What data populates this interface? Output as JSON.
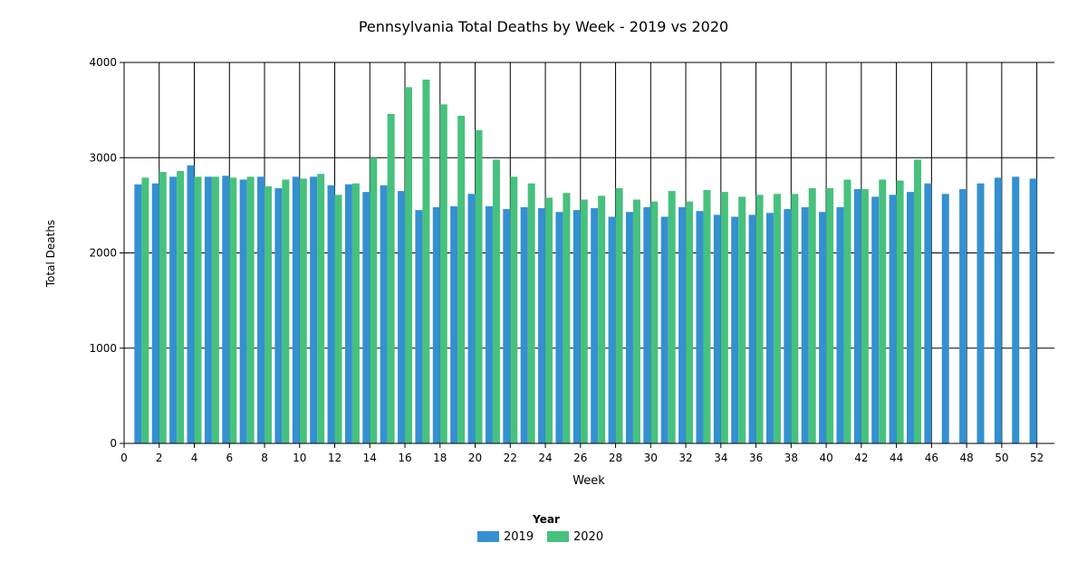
{
  "chart_data": {
    "type": "bar",
    "title": "Pennsylvania Total Deaths by Week - 2019 vs 2020",
    "xlabel": "Week",
    "ylabel": "Total Deaths",
    "xlim": [
      0,
      53
    ],
    "ylim": [
      0,
      4000
    ],
    "xticks": [
      0,
      2,
      4,
      6,
      8,
      10,
      12,
      14,
      16,
      18,
      20,
      22,
      24,
      26,
      28,
      30,
      32,
      34,
      36,
      38,
      40,
      42,
      44,
      46,
      48,
      50,
      52
    ],
    "yticks": [
      0,
      1000,
      2000,
      3000,
      4000
    ],
    "grid": true,
    "legend": {
      "title": "Year",
      "placement": "bottom"
    },
    "weeks": [
      1,
      2,
      3,
      4,
      5,
      6,
      7,
      8,
      9,
      10,
      11,
      12,
      13,
      14,
      15,
      16,
      17,
      18,
      19,
      20,
      21,
      22,
      23,
      24,
      25,
      26,
      27,
      28,
      29,
      30,
      31,
      32,
      33,
      34,
      35,
      36,
      37,
      38,
      39,
      40,
      41,
      42,
      43,
      44,
      45,
      46,
      47,
      48,
      49,
      50,
      51,
      52
    ],
    "series": [
      {
        "name": "2019",
        "color": "#3490d0",
        "values": [
          2720,
          2730,
          2800,
          2920,
          2800,
          2810,
          2770,
          2800,
          2680,
          2800,
          2800,
          2710,
          2720,
          2640,
          2710,
          2650,
          2450,
          2480,
          2490,
          2620,
          2490,
          2460,
          2480,
          2470,
          2430,
          2450,
          2470,
          2380,
          2430,
          2480,
          2380,
          2480,
          2440,
          2400,
          2380,
          2400,
          2420,
          2460,
          2480,
          2430,
          2480,
          2670,
          2590,
          2610,
          2640,
          2730,
          2620,
          2670,
          2730,
          2790,
          2800,
          2780
        ]
      },
      {
        "name": "2020",
        "color": "#47c17e",
        "values": [
          2790,
          2850,
          2860,
          2800,
          2800,
          2790,
          2800,
          2700,
          2770,
          2780,
          2830,
          2610,
          2730,
          3000,
          3460,
          3740,
          3820,
          3560,
          3440,
          3290,
          2980,
          2800,
          2730,
          2580,
          2630,
          2560,
          2600,
          2680,
          2560,
          2540,
          2650,
          2540,
          2660,
          2640,
          2590,
          2610,
          2620,
          2620,
          2680,
          2680,
          2770,
          2670,
          2770,
          2760,
          2980
        ]
      }
    ]
  }
}
